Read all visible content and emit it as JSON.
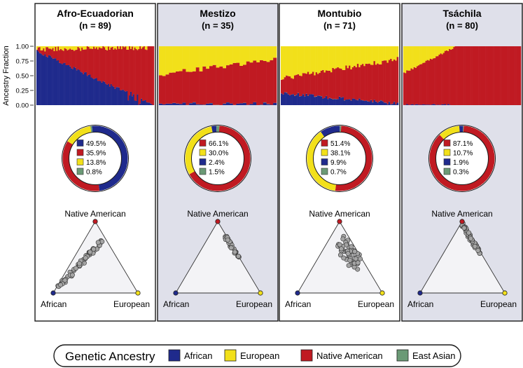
{
  "y_axis": {
    "label": "Ancestry Fraction",
    "ticks": [
      "1.00",
      "0.75",
      "0.50",
      "0.25",
      "0.00"
    ]
  },
  "legend": {
    "title": "Genetic Ancestry",
    "items": [
      {
        "label": "African",
        "color": "#1f2a8c"
      },
      {
        "label": "European",
        "color": "#f2e01a"
      },
      {
        "label": "Native American",
        "color": "#c01a22"
      },
      {
        "label": "East Asian",
        "color": "#6b9a76"
      }
    ]
  },
  "ternary_labels": {
    "top": "Native American",
    "left": "African",
    "right": "European"
  },
  "chart_data": [
    {
      "type": "stacked-bar + donut + ternary-scatter",
      "population": "Afro-Ecuadorian",
      "n_label": "(n = 89)",
      "n": 89,
      "highlighted": false,
      "bar_profile": {
        "african": [
          0.92,
          0.0
        ],
        "european": [
          0.05,
          0.02
        ],
        "east_asian": 0.0
      },
      "ylim": [
        0,
        1
      ],
      "donut": [
        {
          "component": "African",
          "color": "#1f2a8c",
          "value": 49.5,
          "label": "49.5%"
        },
        {
          "component": "Native American",
          "color": "#c01a22",
          "value": 35.9,
          "label": "35.9%"
        },
        {
          "component": "European",
          "color": "#f2e01a",
          "value": 13.8,
          "label": "13.8%"
        },
        {
          "component": "East Asian",
          "color": "#6b9a76",
          "value": 0.8,
          "label": "0.8%"
        }
      ],
      "ternary_profile": "spread-low-left"
    },
    {
      "type": "stacked-bar + donut + ternary-scatter",
      "population": "Mestizo",
      "n_label": "(n = 35)",
      "n": 35,
      "highlighted": true,
      "bar_profile": {
        "african": [
          0.02,
          0.02
        ],
        "european": [
          0.48,
          0.22
        ],
        "east_asian": 0.005
      },
      "ylim": [
        0,
        1
      ],
      "donut": [
        {
          "component": "Native American",
          "color": "#c01a22",
          "value": 66.1,
          "label": "66.1%"
        },
        {
          "component": "European",
          "color": "#f2e01a",
          "value": 30.0,
          "label": "30.0%"
        },
        {
          "component": "African",
          "color": "#1f2a8c",
          "value": 2.4,
          "label": "2.4%"
        },
        {
          "component": "East Asian",
          "color": "#6b9a76",
          "value": 1.5,
          "label": "1.5%"
        }
      ],
      "ternary_profile": "tight-upper-right"
    },
    {
      "type": "stacked-bar + donut + ternary-scatter",
      "population": "Montubio",
      "n_label": "(n = 71)",
      "n": 71,
      "highlighted": false,
      "bar_profile": {
        "african": [
          0.2,
          0.03
        ],
        "european": [
          0.55,
          0.22
        ],
        "east_asian": 0.005
      },
      "ylim": [
        0,
        1
      ],
      "donut": [
        {
          "component": "Native American",
          "color": "#c01a22",
          "value": 51.4,
          "label": "51.4%"
        },
        {
          "component": "European",
          "color": "#f2e01a",
          "value": 38.1,
          "label": "38.1%"
        },
        {
          "component": "African",
          "color": "#1f2a8c",
          "value": 9.9,
          "label": "9.9%"
        },
        {
          "component": "East Asian",
          "color": "#6b9a76",
          "value": 0.7,
          "label": "0.7%"
        }
      ],
      "ternary_profile": "mid-right"
    },
    {
      "type": "stacked-bar + donut + ternary-scatter",
      "population": "Tsáchila",
      "n_label": "(n = 80)",
      "n": 80,
      "highlighted": true,
      "bar_profile": {
        "african": [
          0.02,
          0.0
        ],
        "european": [
          0.45,
          0.0
        ],
        "east_asian": 0.0
      },
      "ylim": [
        0,
        1
      ],
      "donut": [
        {
          "component": "Native American",
          "color": "#c01a22",
          "value": 87.1,
          "label": "87.1%"
        },
        {
          "component": "European",
          "color": "#f2e01a",
          "value": 10.7,
          "label": "10.7%"
        },
        {
          "component": "African",
          "color": "#1f2a8c",
          "value": 1.9,
          "label": "1.9%"
        },
        {
          "component": "East Asian",
          "color": "#6b9a76",
          "value": 0.3,
          "label": "0.3%"
        }
      ],
      "ternary_profile": "near-top"
    }
  ]
}
